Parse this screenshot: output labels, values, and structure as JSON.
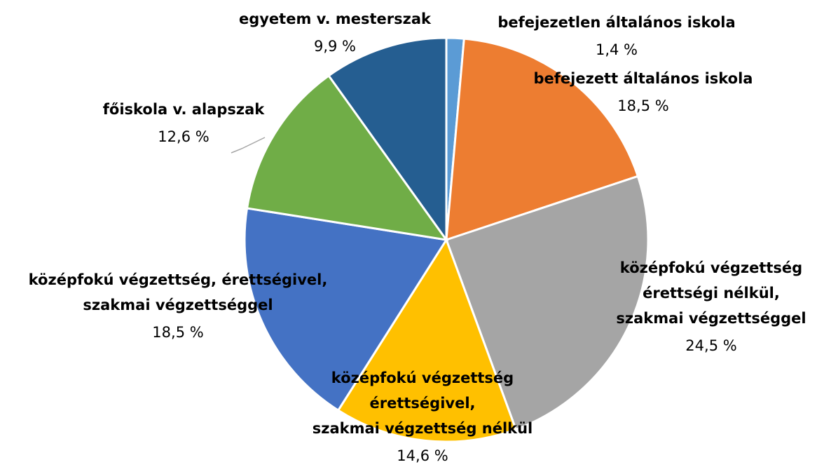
{
  "chart_data": {
    "type": "pie",
    "categories": [
      [
        "befejezetlen általános iskola"
      ],
      [
        "befejezett általános iskola"
      ],
      [
        "középfokú végzettség",
        "érettségi nélkül,",
        "szakmai végzettséggel"
      ],
      [
        "középfokú végzettség",
        "érettségivel,",
        "szakmai végzettség nélkül"
      ],
      [
        "középfokú végzettség, érettségivel,",
        "szakmai végzettséggel"
      ],
      [
        "főiskola v. alapszak"
      ],
      [
        "egyetem v. mesterszak"
      ]
    ],
    "values": [
      1.4,
      18.5,
      24.5,
      14.6,
      18.5,
      12.6,
      9.9
    ],
    "value_labels": [
      "1,4 %",
      "18,5 %",
      "24,5 %",
      "14,6 %",
      "18,5 %",
      "12,6 %",
      "9,9 %"
    ],
    "colors": [
      "#5b9bd5",
      "#ed7d31",
      "#a5a5a5",
      "#ffc000",
      "#4472c4",
      "#70ad47",
      "#255e91"
    ]
  }
}
